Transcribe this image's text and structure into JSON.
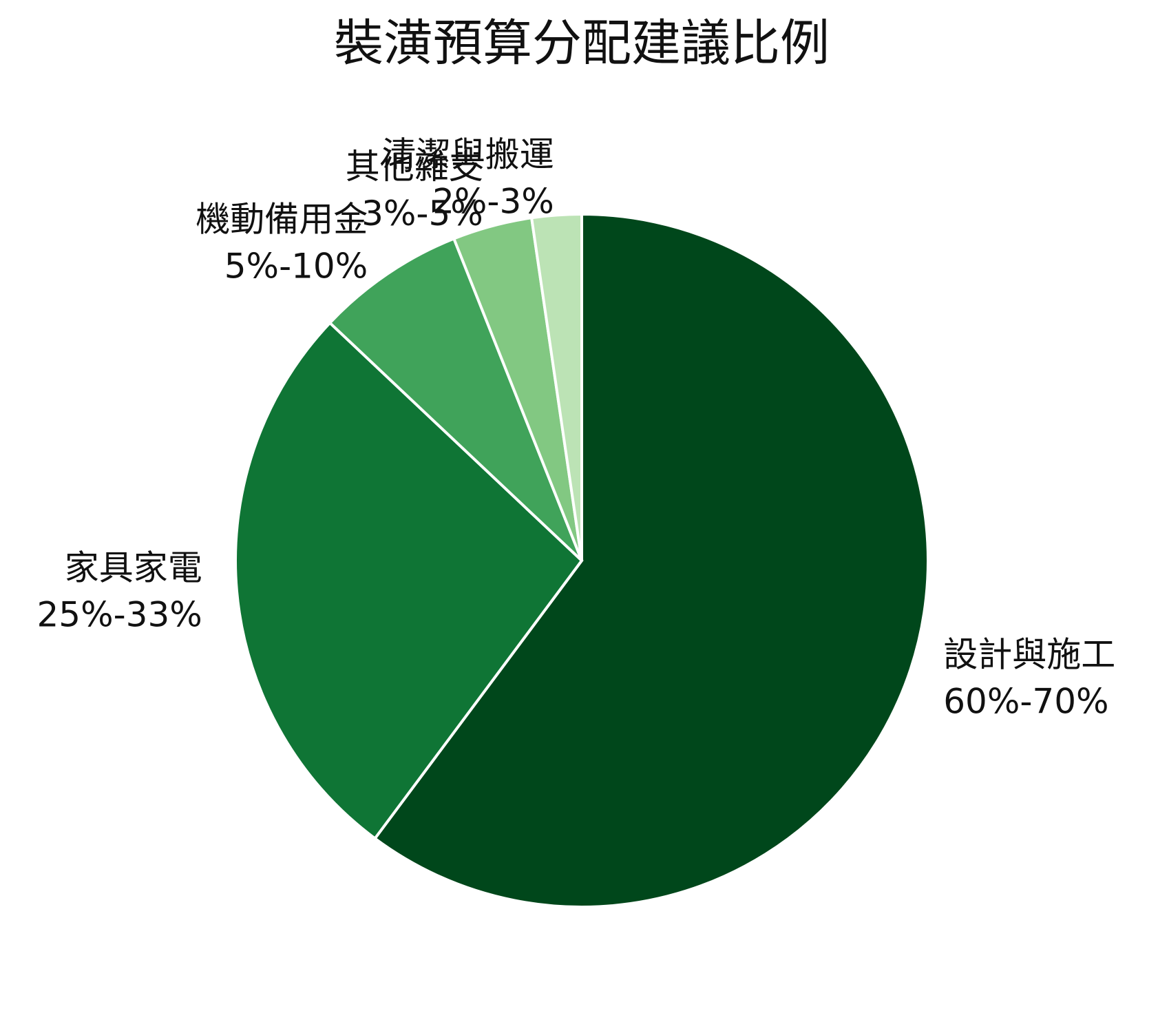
{
  "chart_data": {
    "type": "pie",
    "title": "裝潢預算分配建議比例",
    "categories": [
      "設計與施工",
      "家具家電",
      "機動備用金",
      "其他雜支",
      "清潔與搬運"
    ],
    "values": [
      65,
      29,
      7.5,
      4,
      2.5
    ],
    "value_labels": [
      "60%-70%",
      "25%-33%",
      "5%-10%",
      "3%-5%",
      "2%-3%"
    ],
    "colors": [
      "#00471b",
      "#0f7535",
      "#40a35a",
      "#82c882",
      "#bce3b5"
    ]
  }
}
